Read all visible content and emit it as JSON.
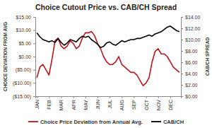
{
  "chart_data": {
    "type": "line",
    "title": "Choice Cutout Price vs. CAB/CH Spread",
    "y_label": "CHOICE DEVIATION FROM AVG",
    "y2_label": "CAB/CH SPREAD",
    "categories": [
      "JAN",
      null,
      null,
      null,
      "FEB",
      null,
      null,
      null,
      "MAR",
      null,
      null,
      null,
      "APR",
      null,
      null,
      null,
      "MAY",
      null,
      null,
      null,
      "JUN",
      null,
      null,
      null,
      "JUL",
      null,
      null,
      null,
      "AUG",
      null,
      null,
      null,
      "SEP",
      null,
      null,
      null,
      "OCT",
      null,
      null,
      null,
      "NOV",
      null,
      null,
      null,
      "DEC",
      null,
      null,
      null
    ],
    "series": [
      {
        "name": "Choice Price Deviation from Annual Avg.",
        "color": "#c0141c",
        "type": "line",
        "values": [
          -8,
          -4,
          -3,
          -5,
          -7,
          -1,
          6,
          7,
          4,
          3,
          4,
          6,
          5,
          3,
          4,
          7,
          9,
          9,
          9.5,
          8,
          5,
          3,
          0,
          -2,
          -3,
          -3,
          -2,
          0,
          -3,
          -4,
          -5,
          -6,
          -6,
          -7,
          -9,
          -11,
          -10,
          -8,
          -2,
          2,
          3,
          1,
          1,
          0,
          -2,
          -4,
          -5,
          -6
        ]
      },
      {
        "name": "CAB/CH",
        "color": "#000000",
        "type": "line",
        "axis": "y2",
        "values": [
          11.2,
          10.5,
          10,
          9.8,
          9.6,
          9.8,
          9.5,
          10.2,
          9.5,
          9,
          9.4,
          10,
          9.8,
          9.6,
          10.2,
          10.6,
          10.4,
          10.6,
          10,
          9.6,
          9.2,
          8.6,
          8.8,
          9.4,
          9.6,
          9.2,
          9,
          9.4,
          9.8,
          9.6,
          9.8,
          10,
          10,
          10.2,
          10.2,
          10.4,
          10.6,
          10.8,
          10.6,
          11,
          11.2,
          11.4,
          11.8,
          12.2,
          12.4,
          12,
          11.6,
          11.4
        ]
      }
    ],
    "ylim": [
      -15,
      15
    ],
    "yticks": [
      {
        "value": -15,
        "label": "($15.00)"
      },
      {
        "value": -10,
        "label": "($10.00)"
      },
      {
        "value": -5,
        "label": "($5.00)"
      },
      {
        "value": 0,
        "label": "$0.00"
      },
      {
        "value": 5,
        "label": "$5.00"
      },
      {
        "value": 10,
        "label": "$10.00"
      },
      {
        "value": 15,
        "label": "$15.00"
      }
    ],
    "y2lim": [
      0,
      14
    ],
    "y2ticks": [
      {
        "value": 0,
        "label": "$0.00"
      },
      {
        "value": 2,
        "label": "$2.00"
      },
      {
        "value": 4,
        "label": "$4.00"
      },
      {
        "value": 6,
        "label": "$6.00"
      },
      {
        "value": 8,
        "label": "$8.00"
      },
      {
        "value": 10,
        "label": "$10.00"
      },
      {
        "value": 12,
        "label": "$12.00"
      },
      {
        "value": 14,
        "label": "$14.00"
      }
    ],
    "grid": false,
    "legend": "bottom"
  }
}
